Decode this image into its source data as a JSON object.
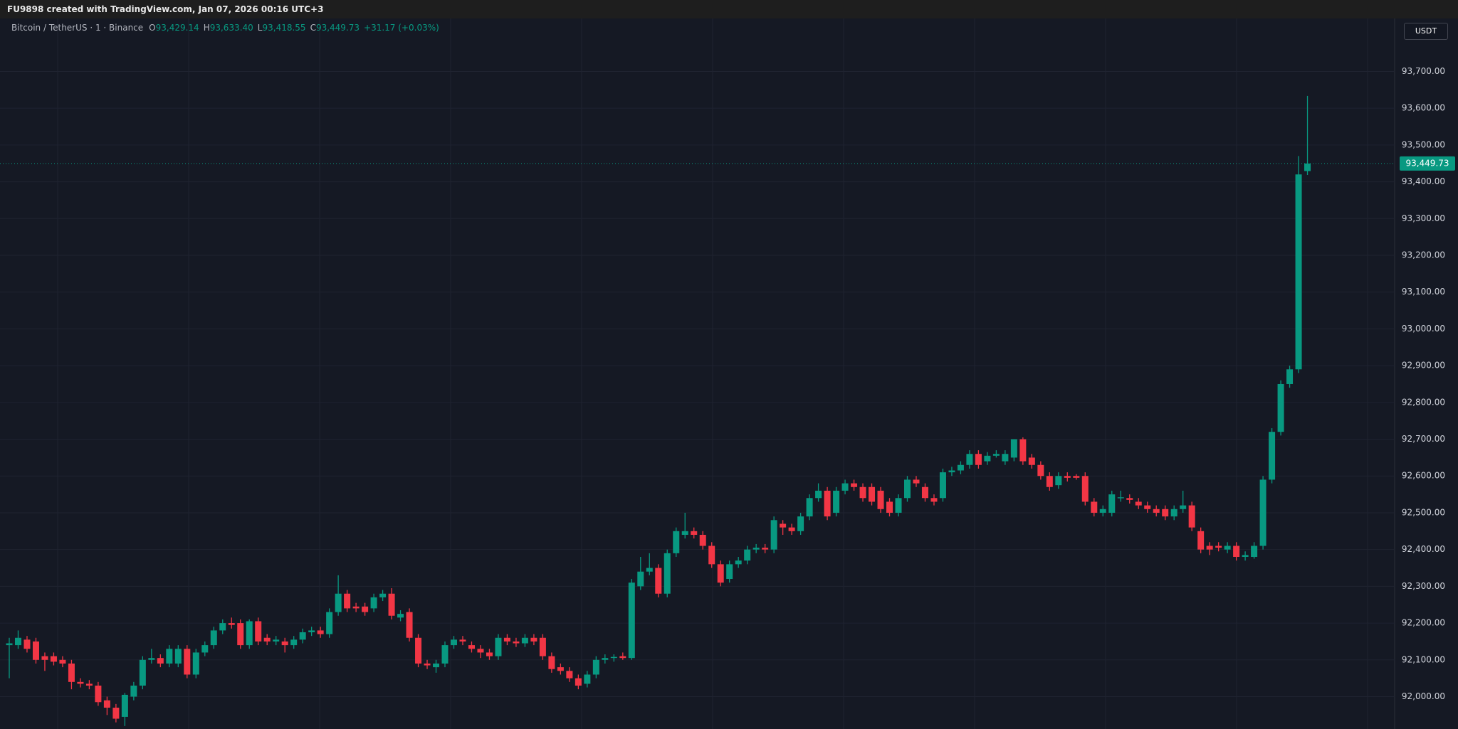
{
  "header": {
    "text": "FU9898 created with TradingView.com, Jan 07, 2026 00:16 UTC+3"
  },
  "legend": {
    "symbol": "Bitcoin / TetherUS · 1 · Binance",
    "o": "O",
    "open": "93,429.14",
    "h": "H",
    "high": "93,633.40",
    "l": "L",
    "low": "93,418.55",
    "c": "C",
    "close": "93,449.73",
    "change": "+31.17 (+0.03%)"
  },
  "currency_button": "USDT",
  "chart_data": {
    "type": "candlestick",
    "up_color": "#089981",
    "down_color": "#f23645",
    "grid": true,
    "ylim": [
      91912,
      93844
    ],
    "yticks": [
      {
        "value": 92000,
        "label": "92,000.00"
      },
      {
        "value": 92100,
        "label": "92,100.00"
      },
      {
        "value": 92200,
        "label": "92,200.00"
      },
      {
        "value": 92300,
        "label": "92,300.00"
      },
      {
        "value": 92400,
        "label": "92,400.00"
      },
      {
        "value": 92500,
        "label": "92,500.00"
      },
      {
        "value": 92600,
        "label": "92,600.00"
      },
      {
        "value": 92700,
        "label": "92,700.00"
      },
      {
        "value": 92800,
        "label": "92,800.00"
      },
      {
        "value": 92900,
        "label": "92,900.00"
      },
      {
        "value": 93000,
        "label": "93,000.00"
      },
      {
        "value": 93100,
        "label": "93,100.00"
      },
      {
        "value": 93200,
        "label": "93,200.00"
      },
      {
        "value": 93300,
        "label": "93,300.00"
      },
      {
        "value": 93400,
        "label": "93,400.00"
      },
      {
        "value": 93500,
        "label": "93,500.00"
      },
      {
        "value": 93600,
        "label": "93,600.00"
      },
      {
        "value": 93700,
        "label": "93,700.00"
      }
    ],
    "last_price_label": "93,449.73",
    "candles": [
      [
        92140,
        92160,
        92050,
        92145
      ],
      [
        92140,
        92180,
        92130,
        92160
      ],
      [
        92155,
        92165,
        92120,
        92130
      ],
      [
        92150,
        92160,
        92090,
        92100
      ],
      [
        92110,
        92120,
        92070,
        92100
      ],
      [
        92110,
        92120,
        92085,
        92095
      ],
      [
        92100,
        92110,
        92080,
        92090
      ],
      [
        92090,
        92100,
        92020,
        92040
      ],
      [
        92040,
        92050,
        92025,
        92035
      ],
      [
        92035,
        92045,
        92020,
        92030
      ],
      [
        92030,
        92040,
        91975,
        91985
      ],
      [
        91990,
        92000,
        91950,
        91970
      ],
      [
        91970,
        91980,
        91930,
        91940
      ],
      [
        91945,
        92010,
        91920,
        92005
      ],
      [
        92000,
        92040,
        91990,
        92030
      ],
      [
        92030,
        92110,
        92020,
        92100
      ],
      [
        92100,
        92130,
        92090,
        92105
      ],
      [
        92105,
        92115,
        92080,
        92090
      ],
      [
        92090,
        92140,
        92080,
        92130
      ],
      [
        92090,
        92140,
        92080,
        92130
      ],
      [
        92130,
        92140,
        92050,
        92060
      ],
      [
        92060,
        92130,
        92050,
        92120
      ],
      [
        92120,
        92150,
        92110,
        92140
      ],
      [
        92140,
        92190,
        92130,
        92180
      ],
      [
        92180,
        92210,
        92170,
        92200
      ],
      [
        92200,
        92215,
        92185,
        92195
      ],
      [
        92200,
        92210,
        92130,
        92140
      ],
      [
        92140,
        92210,
        92130,
        92205
      ],
      [
        92205,
        92215,
        92140,
        92150
      ],
      [
        92160,
        92170,
        92140,
        92150
      ],
      [
        92150,
        92165,
        92140,
        92155
      ],
      [
        92150,
        92160,
        92120,
        92140
      ],
      [
        92140,
        92165,
        92130,
        92155
      ],
      [
        92155,
        92185,
        92145,
        92175
      ],
      [
        92175,
        92190,
        92165,
        92180
      ],
      [
        92180,
        92190,
        92160,
        92170
      ],
      [
        92170,
        92240,
        92160,
        92230
      ],
      [
        92230,
        92330,
        92220,
        92280
      ],
      [
        92280,
        92290,
        92230,
        92240
      ],
      [
        92245,
        92255,
        92230,
        92240
      ],
      [
        92245,
        92255,
        92220,
        92230
      ],
      [
        92240,
        92280,
        92230,
        92270
      ],
      [
        92270,
        92290,
        92260,
        92280
      ],
      [
        92280,
        92295,
        92210,
        92220
      ],
      [
        92215,
        92235,
        92205,
        92225
      ],
      [
        92230,
        92240,
        92150,
        92160
      ],
      [
        92160,
        92170,
        92080,
        92090
      ],
      [
        92090,
        92100,
        92075,
        92085
      ],
      [
        92080,
        92100,
        92065,
        92090
      ],
      [
        92090,
        92150,
        92080,
        92140
      ],
      [
        92140,
        92165,
        92130,
        92155
      ],
      [
        92155,
        92165,
        92140,
        92150
      ],
      [
        92140,
        92150,
        92120,
        92130
      ],
      [
        92130,
        92140,
        92105,
        92120
      ],
      [
        92120,
        92130,
        92100,
        92110
      ],
      [
        92110,
        92170,
        92100,
        92160
      ],
      [
        92160,
        92170,
        92140,
        92150
      ],
      [
        92150,
        92160,
        92135,
        92145
      ],
      [
        92145,
        92170,
        92135,
        92160
      ],
      [
        92160,
        92170,
        92140,
        92150
      ],
      [
        92160,
        92170,
        92100,
        92110
      ],
      [
        92110,
        92120,
        92065,
        92075
      ],
      [
        92080,
        92090,
        92060,
        92070
      ],
      [
        92070,
        92080,
        92040,
        92050
      ],
      [
        92050,
        92060,
        92020,
        92030
      ],
      [
        92035,
        92070,
        92025,
        92060
      ],
      [
        92060,
        92110,
        92050,
        92100
      ],
      [
        92100,
        92115,
        92090,
        92105
      ],
      [
        92105,
        92115,
        92095,
        92108
      ],
      [
        92110,
        92120,
        92100,
        92105
      ],
      [
        92105,
        92320,
        92100,
        92310
      ],
      [
        92300,
        92380,
        92290,
        92340
      ],
      [
        92340,
        92390,
        92330,
        92350
      ],
      [
        92350,
        92360,
        92270,
        92280
      ],
      [
        92280,
        92400,
        92270,
        92390
      ],
      [
        92390,
        92460,
        92380,
        92450
      ],
      [
        92440,
        92500,
        92430,
        92450
      ],
      [
        92450,
        92460,
        92430,
        92440
      ],
      [
        92440,
        92450,
        92400,
        92410
      ],
      [
        92410,
        92420,
        92350,
        92360
      ],
      [
        92360,
        92370,
        92300,
        92310
      ],
      [
        92320,
        92370,
        92310,
        92360
      ],
      [
        92360,
        92380,
        92350,
        92370
      ],
      [
        92370,
        92410,
        92360,
        92400
      ],
      [
        92400,
        92415,
        92390,
        92405
      ],
      [
        92405,
        92415,
        92390,
        92400
      ],
      [
        92400,
        92490,
        92390,
        92480
      ],
      [
        92470,
        92480,
        92440,
        92460
      ],
      [
        92460,
        92470,
        92440,
        92450
      ],
      [
        92450,
        92500,
        92440,
        92490
      ],
      [
        92490,
        92550,
        92480,
        92540
      ],
      [
        92540,
        92580,
        92530,
        92560
      ],
      [
        92560,
        92570,
        92480,
        92490
      ],
      [
        92500,
        92570,
        92490,
        92560
      ],
      [
        92560,
        92590,
        92550,
        92580
      ],
      [
        92580,
        92590,
        92560,
        92570
      ],
      [
        92570,
        92580,
        92530,
        92540
      ],
      [
        92570,
        92580,
        92520,
        92530
      ],
      [
        92560,
        92570,
        92500,
        92510
      ],
      [
        92530,
        92540,
        92490,
        92500
      ],
      [
        92500,
        92550,
        92490,
        92540
      ],
      [
        92540,
        92600,
        92530,
        92590
      ],
      [
        92590,
        92600,
        92570,
        92580
      ],
      [
        92570,
        92580,
        92530,
        92540
      ],
      [
        92540,
        92550,
        92520,
        92530
      ],
      [
        92540,
        92620,
        92530,
        92610
      ],
      [
        92610,
        92625,
        92600,
        92615
      ],
      [
        92615,
        92640,
        92605,
        92630
      ],
      [
        92630,
        92670,
        92620,
        92660
      ],
      [
        92660,
        92670,
        92620,
        92630
      ],
      [
        92640,
        92665,
        92630,
        92655
      ],
      [
        92655,
        92670,
        92650,
        92660
      ],
      [
        92640,
        92670,
        92630,
        92660
      ],
      [
        92650,
        92700,
        92640,
        92700
      ],
      [
        92700,
        92705,
        92630,
        92640
      ],
      [
        92650,
        92660,
        92620,
        92630
      ],
      [
        92630,
        92640,
        92590,
        92600
      ],
      [
        92600,
        92610,
        92560,
        92570
      ],
      [
        92575,
        92610,
        92565,
        92600
      ],
      [
        92600,
        92610,
        92585,
        92595
      ],
      [
        92600,
        92605,
        92590,
        92595
      ],
      [
        92600,
        92610,
        92520,
        92530
      ],
      [
        92530,
        92540,
        92490,
        92500
      ],
      [
        92500,
        92520,
        92490,
        92510
      ],
      [
        92500,
        92560,
        92490,
        92550
      ],
      [
        92540,
        92560,
        92530,
        92542
      ],
      [
        92540,
        92550,
        92525,
        92535
      ],
      [
        92530,
        92540,
        92510,
        92520
      ],
      [
        92520,
        92530,
        92500,
        92510
      ],
      [
        92510,
        92520,
        92490,
        92500
      ],
      [
        92510,
        92520,
        92480,
        92490
      ],
      [
        92490,
        92520,
        92480,
        92510
      ],
      [
        92510,
        92560,
        92500,
        92520
      ],
      [
        92520,
        92530,
        92450,
        92460
      ],
      [
        92450,
        92460,
        92390,
        92400
      ],
      [
        92410,
        92420,
        92385,
        92400
      ],
      [
        92410,
        92420,
        92395,
        92405
      ],
      [
        92400,
        92420,
        92390,
        92410
      ],
      [
        92410,
        92420,
        92370,
        92380
      ],
      [
        92380,
        92395,
        92370,
        92385
      ],
      [
        92380,
        92420,
        92375,
        92410
      ],
      [
        92410,
        92600,
        92400,
        92590
      ],
      [
        92590,
        92730,
        92580,
        92720
      ],
      [
        92720,
        92860,
        92710,
        92850
      ],
      [
        92850,
        92900,
        92840,
        92890
      ],
      [
        92890,
        93470,
        92880,
        93420
      ],
      [
        93429.14,
        93633.4,
        93418.55,
        93449.73
      ]
    ]
  }
}
